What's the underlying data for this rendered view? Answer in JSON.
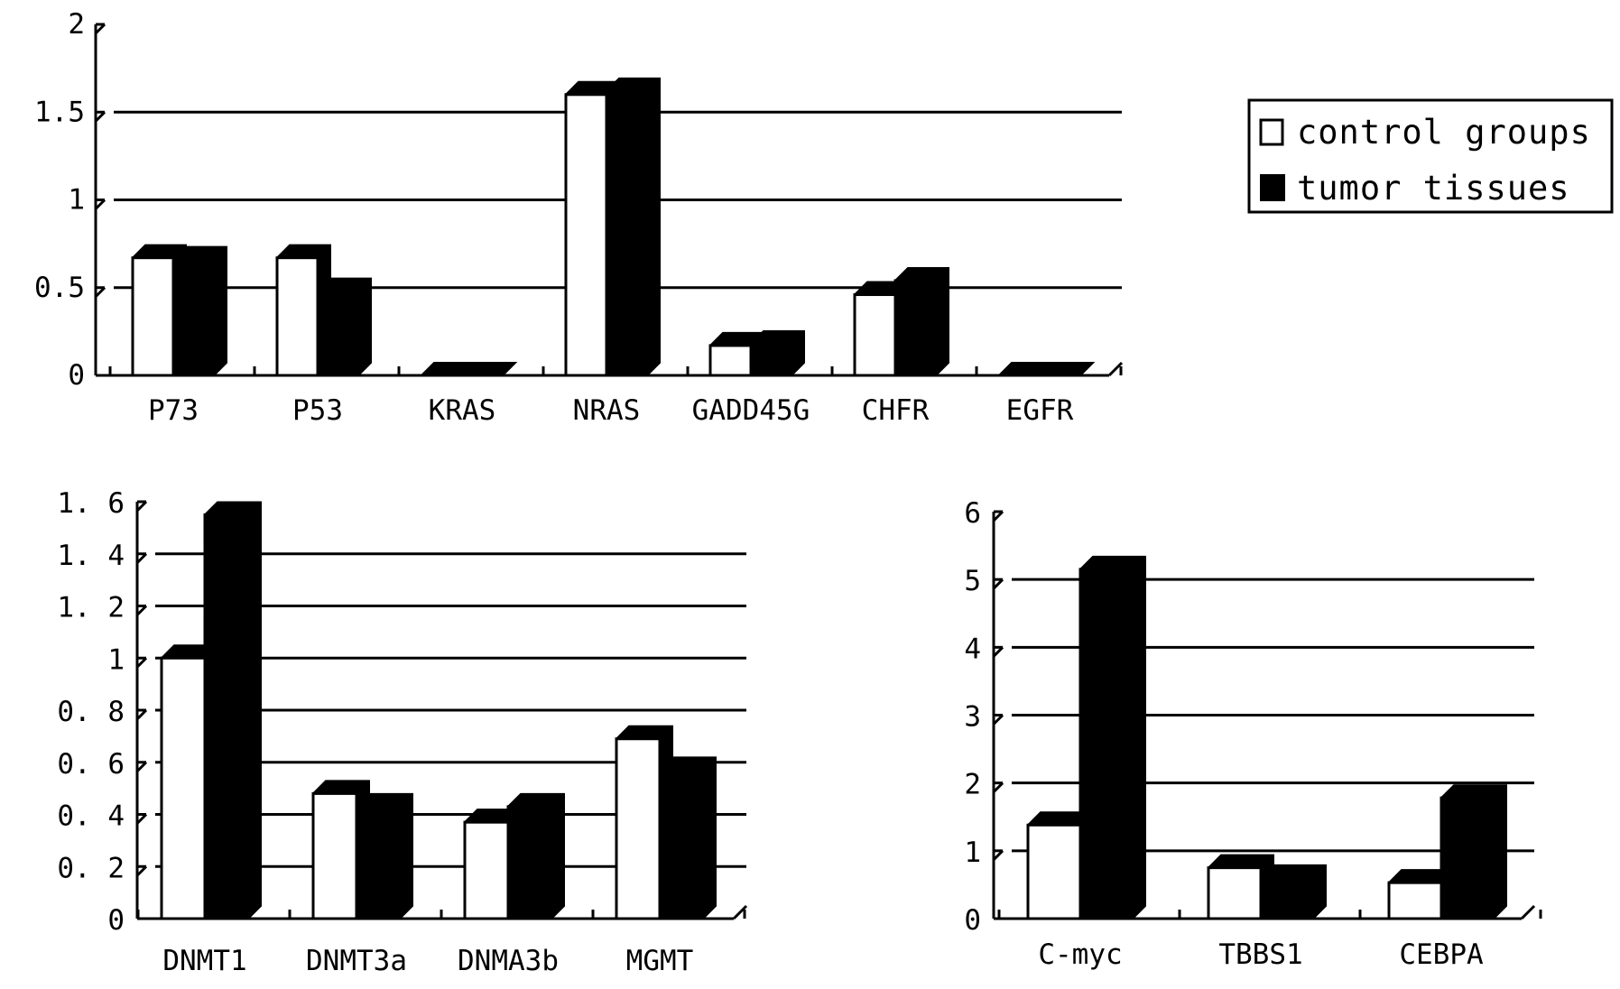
{
  "legend": {
    "items": [
      {
        "label": "control groups",
        "color": "#ffffff"
      },
      {
        "label": "tumor tissues",
        "color": "#000000"
      }
    ]
  },
  "colors": {
    "control": "#ffffff",
    "tumor": "#000000",
    "axis": "#000000"
  },
  "chart_data": [
    {
      "type": "bar",
      "categories": [
        "P73",
        "P53",
        "KRAS",
        "NRAS",
        "GADD45G",
        "CHFR",
        "EGFR"
      ],
      "series": [
        {
          "name": "control groups",
          "values": [
            0.67,
            0.67,
            0.0,
            1.6,
            0.17,
            0.46,
            0.0
          ]
        },
        {
          "name": "tumor tissues",
          "values": [
            0.66,
            0.48,
            0.0,
            1.62,
            0.18,
            0.54,
            0.0
          ]
        }
      ],
      "ylim": [
        0,
        2
      ],
      "yticks": [
        "0",
        "0.5",
        "1",
        "1.5",
        "2"
      ],
      "grid": true,
      "legend": "top-right"
    },
    {
      "type": "bar",
      "categories": [
        "DNMT1",
        "DNMT3a",
        "DNMA3b",
        "MGMT"
      ],
      "series": [
        {
          "name": "control groups",
          "values": [
            1.0,
            0.48,
            0.37,
            0.69
          ]
        },
        {
          "name": "tumor tissues",
          "values": [
            1.55,
            0.43,
            0.43,
            0.57
          ]
        }
      ],
      "ylim": [
        0,
        1.6
      ],
      "yticks": [
        "0",
        "0. 2",
        "0. 4",
        "0. 6",
        "0. 8",
        "1",
        "1. 2",
        "1. 4",
        "1. 6"
      ],
      "grid": true
    },
    {
      "type": "bar",
      "categories": [
        "C-myc",
        "TBBS1",
        "CEBPA"
      ],
      "series": [
        {
          "name": "control groups",
          "values": [
            1.38,
            0.75,
            0.53
          ]
        },
        {
          "name": "tumor tissues",
          "values": [
            5.15,
            0.6,
            1.78
          ]
        }
      ],
      "ylim": [
        0,
        6
      ],
      "yticks": [
        "0",
        "1",
        "2",
        "3",
        "4",
        "5",
        "6"
      ],
      "grid": true
    }
  ]
}
